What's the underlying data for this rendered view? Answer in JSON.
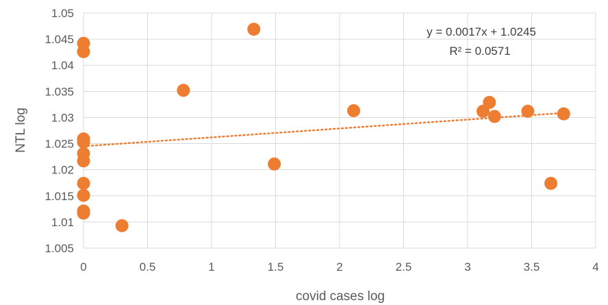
{
  "chart_data": {
    "type": "scatter",
    "xlabel": "covid cases log",
    "ylabel": "NTL log",
    "xlim": [
      0,
      4
    ],
    "ylim": [
      1.005,
      1.05
    ],
    "x_ticks": [
      "0",
      "0.5",
      "1",
      "1.5",
      "2",
      "2.5",
      "3",
      "3.5",
      "4"
    ],
    "y_ticks": [
      "1.005",
      "1.01",
      "1.015",
      "1.02",
      "1.025",
      "1.03",
      "1.035",
      "1.04",
      "1.045",
      "1.05"
    ],
    "grid": true,
    "marker_color": "#ED7D31",
    "trendline": {
      "type": "linear",
      "slope": 0.0017,
      "intercept": 1.0245,
      "style": "dotted",
      "color": "#ED7D31",
      "equation_label": "y = 0.0017x + 1.0245",
      "r2_label": "R² = 0.0571"
    },
    "points": [
      {
        "x": 0,
        "y": 1.0442
      },
      {
        "x": 0,
        "y": 1.0426
      },
      {
        "x": 0,
        "y": 1.0259
      },
      {
        "x": 0,
        "y": 1.0253
      },
      {
        "x": 0,
        "y": 1.0231
      },
      {
        "x": 0,
        "y": 1.0217
      },
      {
        "x": 0,
        "y": 1.0174
      },
      {
        "x": 0,
        "y": 1.0151
      },
      {
        "x": 0,
        "y": 1.0121
      },
      {
        "x": 0,
        "y": 1.0117
      },
      {
        "x": 0.3,
        "y": 1.0093
      },
      {
        "x": 0.78,
        "y": 1.0352
      },
      {
        "x": 1.33,
        "y": 1.0469
      },
      {
        "x": 1.49,
        "y": 1.0211
      },
      {
        "x": 2.11,
        "y": 1.0313
      },
      {
        "x": 3.12,
        "y": 1.0312
      },
      {
        "x": 3.17,
        "y": 1.0329
      },
      {
        "x": 3.21,
        "y": 1.0302
      },
      {
        "x": 3.47,
        "y": 1.0312
      },
      {
        "x": 3.65,
        "y": 1.0174
      },
      {
        "x": 3.75,
        "y": 1.0307
      }
    ]
  }
}
